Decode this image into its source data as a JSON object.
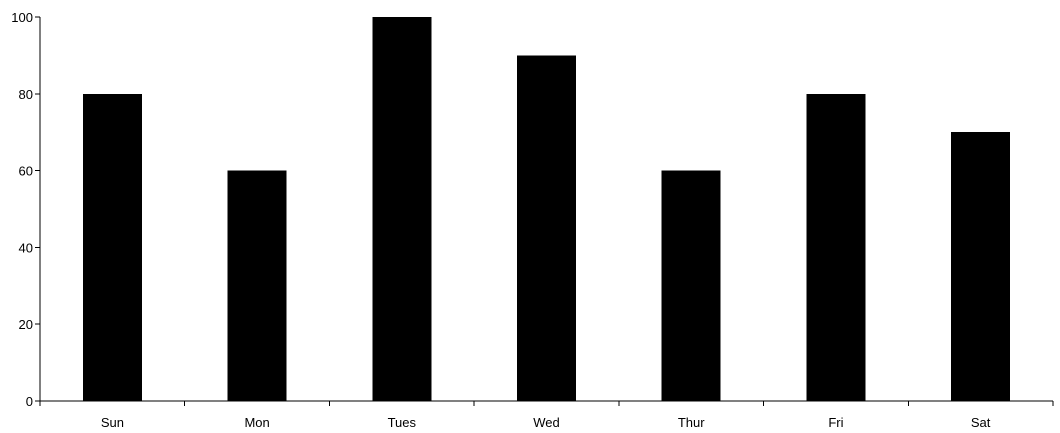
{
  "chart_data": {
    "type": "bar",
    "title": "",
    "xlabel": "",
    "ylabel": "",
    "categories": [
      "Sun",
      "Mon",
      "Tues",
      "Wed",
      "Thur",
      "Fri",
      "Sat"
    ],
    "values": [
      80,
      60,
      100,
      90,
      60,
      80,
      70
    ],
    "ylim": [
      0,
      100
    ],
    "yticks": [
      0,
      20,
      40,
      60,
      80,
      100
    ],
    "bar_color": "#000000",
    "grid": false,
    "legend": "none"
  }
}
